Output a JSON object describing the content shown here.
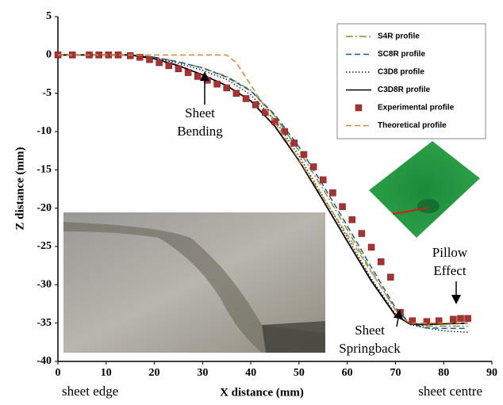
{
  "chart_data": {
    "type": "line",
    "x_label": "X distance (mm)",
    "y_label": "Z distance (mm)",
    "xlim": [
      0,
      90
    ],
    "xticks": [
      0,
      10,
      20,
      30,
      40,
      50,
      60,
      70,
      80,
      90
    ],
    "ylim": [
      -40,
      5
    ],
    "yticks": [
      5,
      0,
      -5,
      -10,
      -15,
      -20,
      -25,
      -30,
      -35,
      -40
    ],
    "legend": "upper right",
    "series": [
      {
        "name": "S4R profile",
        "color": "#6f9a2e",
        "style": "dash-dot",
        "x": [
          0,
          10,
          15,
          20,
          25,
          30,
          35,
          40,
          45,
          50,
          55,
          60,
          65,
          70,
          73,
          76,
          80,
          85
        ],
        "values": [
          0,
          0,
          0,
          -0.3,
          -0.9,
          -1.7,
          -2.8,
          -4.6,
          -8,
          -12.5,
          -17.5,
          -22.8,
          -28.2,
          -33.3,
          -35,
          -35.4,
          -35.4,
          -35.4
        ]
      },
      {
        "name": "SC8R profile",
        "color": "#2050a0",
        "style": "dashed",
        "x": [
          0,
          10,
          15,
          20,
          25,
          30,
          35,
          40,
          45,
          50,
          55,
          60,
          65,
          70,
          73,
          76,
          80,
          85
        ],
        "values": [
          0,
          0,
          0,
          -0.3,
          -0.9,
          -1.7,
          -2.9,
          -4.7,
          -7.8,
          -12,
          -17,
          -22.3,
          -27.7,
          -33,
          -35,
          -35.6,
          -35.7,
          -35.7
        ]
      },
      {
        "name": "C3D8 profile",
        "color": "#222222",
        "style": "dotted",
        "x": [
          0,
          10,
          15,
          20,
          25,
          30,
          35,
          40,
          45,
          50,
          55,
          60,
          65,
          70,
          73,
          76,
          80,
          85
        ],
        "values": [
          0,
          0,
          0,
          -0.4,
          -1.1,
          -2,
          -3.2,
          -5.2,
          -8.5,
          -13.2,
          -18.5,
          -23.8,
          -29.2,
          -33.8,
          -35.2,
          -35.6,
          -36,
          -36.2
        ]
      },
      {
        "name": "C3D8R profile",
        "color": "#000000",
        "style": "solid",
        "x": [
          0,
          10,
          15,
          20,
          25,
          30,
          35,
          40,
          45,
          50,
          55,
          60,
          65,
          70,
          73,
          76,
          80,
          85
        ],
        "values": [
          0,
          0,
          0,
          -0.5,
          -1.4,
          -2.6,
          -4,
          -6,
          -9.3,
          -13.8,
          -19,
          -24.3,
          -29.5,
          -34,
          -35.1,
          -35.2,
          -35.1,
          -35
        ]
      },
      {
        "name": "Experimental profile",
        "color": "#a83232",
        "style": "markers",
        "x": [
          0,
          3,
          6.5,
          8.5,
          10.5,
          12.5,
          15,
          17,
          19,
          21,
          23,
          25,
          27,
          29,
          31,
          33,
          35,
          37,
          39,
          41,
          43,
          45,
          47,
          49,
          51,
          53,
          55,
          57,
          59,
          61,
          63,
          65,
          67,
          69,
          71,
          73.5,
          76.5,
          79,
          82,
          83.5,
          85
        ],
        "values": [
          0,
          0,
          0,
          0,
          0,
          0,
          -0.1,
          -0.3,
          -0.6,
          -1,
          -1.4,
          -1.8,
          -2.3,
          -2.8,
          -3.3,
          -3.8,
          -4.3,
          -5,
          -5.7,
          -6.5,
          -7.5,
          -8.7,
          -10,
          -11.5,
          -13,
          -14.6,
          -16.3,
          -18,
          -19.8,
          -21.5,
          -23.3,
          -25.1,
          -27,
          -29,
          -33.6,
          -34.7,
          -34.8,
          -34.7,
          -34.5,
          -34.4,
          -34.4
        ]
      },
      {
        "name": "Theoretical profile",
        "color": "#d4883a",
        "style": "dashed",
        "x": [
          0,
          35,
          37,
          71,
          73,
          85
        ],
        "values": [
          0,
          0,
          -1,
          -34.2,
          -35,
          -35
        ]
      }
    ],
    "annotations": [
      {
        "lines": [
          "Sheet",
          "Bending"
        ]
      },
      {
        "lines": [
          "Pillow",
          "Effect"
        ]
      },
      {
        "lines": [
          "Sheet",
          "Springback"
        ]
      },
      {
        "lines": [
          "sheet edge"
        ]
      },
      {
        "lines": [
          "sheet centre"
        ]
      }
    ]
  }
}
